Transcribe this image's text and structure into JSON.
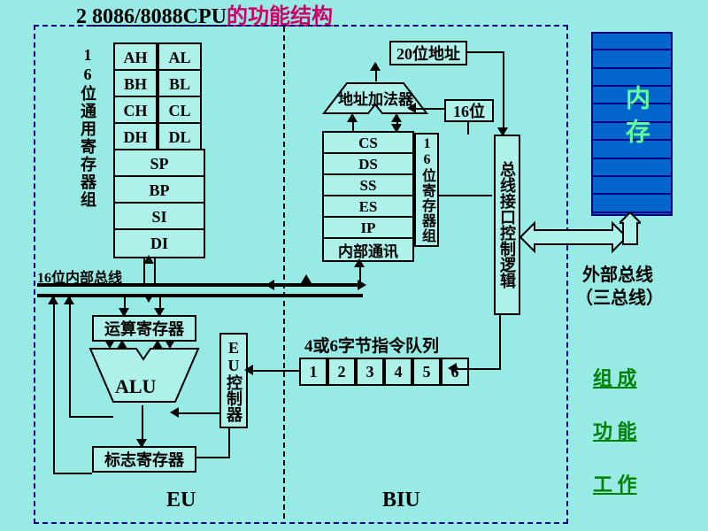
{
  "title": {
    "num": "2",
    "text": "8086/8088CPU",
    "suffix": "的功能结构"
  },
  "eu": {
    "label_16bit_regs": "16位通用寄存器组",
    "regs_hilo": [
      [
        "AH",
        "AL"
      ],
      [
        "BH",
        "BL"
      ],
      [
        "CH",
        "CL"
      ],
      [
        "DH",
        "DL"
      ]
    ],
    "regs_wide": [
      "SP",
      "BP",
      "SI",
      "DI"
    ],
    "internal_bus": "16位内部总线",
    "op_reg": "运算寄存器",
    "alu": "ALU",
    "flag_reg": "标志寄存器",
    "eu_ctrl": "EU控制器",
    "label": "EU"
  },
  "biu": {
    "addr20": "20位地址",
    "addr_adder": "地址加法器",
    "bit16": "16位",
    "seg_regs": [
      "CS",
      "DS",
      "SS",
      "ES",
      "IP"
    ],
    "int_comm": "内部通讯",
    "reg_group_label": "16位寄存器组",
    "bus_ctrl": "总线接口控制逻辑",
    "queue_label": "4或6字节指令队列",
    "queue": [
      "1",
      "2",
      "3",
      "4",
      "5",
      "6"
    ],
    "label": "BIU"
  },
  "right": {
    "memory": "内存",
    "ext_bus": "外部总线",
    "ext_bus2": "（三总线）",
    "links": [
      "组 成",
      "功 能",
      "工 作"
    ]
  },
  "colors": {
    "bg": "#98ebe4",
    "navy": "#000080",
    "green": "#008000",
    "mem": "#0066cc"
  }
}
